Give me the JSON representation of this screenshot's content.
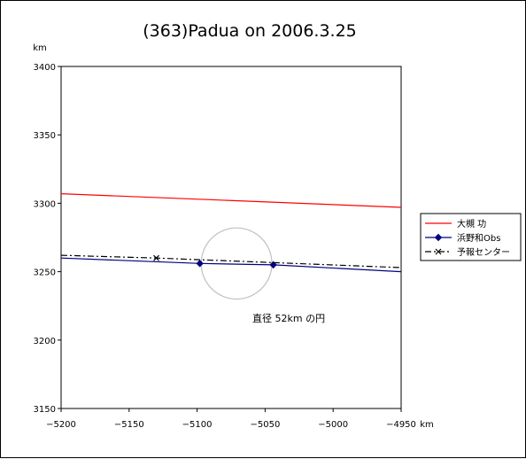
{
  "chart_data": {
    "type": "line",
    "title": "(363)Padua on 2006.3.25",
    "x_unit": "km",
    "y_unit": "km",
    "xlim": [
      -5200,
      -4950
    ],
    "ylim": [
      3150,
      3400
    ],
    "x_ticks": [
      "-5200",
      "-5150",
      "-5100",
      "-5050",
      "-5000",
      "-4950"
    ],
    "y_ticks": [
      "3400",
      "3350",
      "3300",
      "3250",
      "3200",
      "3150"
    ],
    "grid": false,
    "legend_position": "right",
    "series": [
      {
        "name": "大槻 功",
        "color": "#ff0000",
        "style": "solid",
        "marker": "none",
        "x": [
          -5200,
          -4950
        ],
        "y": [
          3307,
          3297
        ]
      },
      {
        "name": "浜野和Obs",
        "color": "#000080",
        "style": "solid",
        "marker": "diamond",
        "x": [
          -5200,
          -5098,
          -5044,
          -4950
        ],
        "y": [
          3260,
          3256,
          3255,
          3250
        ],
        "marker_index": [
          1,
          2
        ]
      },
      {
        "name": "予報センター",
        "color": "#000000",
        "style": "dashdot",
        "marker": "x",
        "x": [
          -5200,
          -5130,
          -4950
        ],
        "y": [
          3262,
          3260,
          3253
        ],
        "marker_index": [
          1
        ]
      }
    ],
    "circle": {
      "cx": -5071,
      "cy": 3256,
      "diameter": 52,
      "color": "#c0c0c0"
    },
    "annotation": "直径 52km の円"
  }
}
